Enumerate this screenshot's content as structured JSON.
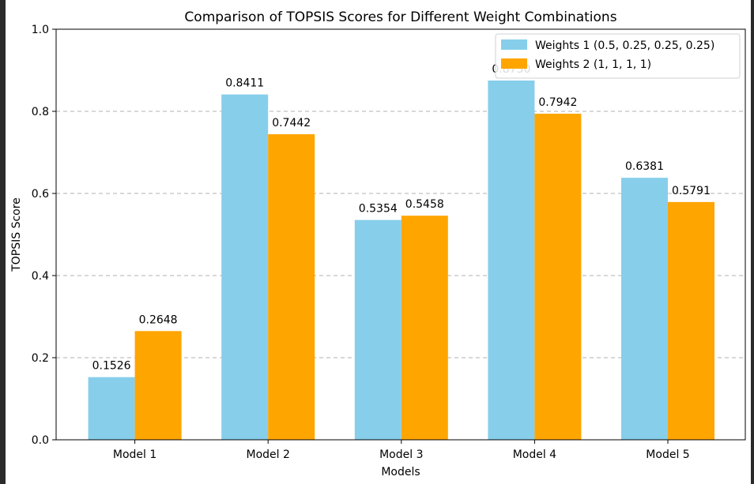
{
  "chart_data": {
    "type": "bar",
    "title": "Comparison of TOPSIS Scores for Different Weight Combinations",
    "xlabel": "Models",
    "ylabel": "TOPSIS Score",
    "categories": [
      "Model 1",
      "Model 2",
      "Model 3",
      "Model 4",
      "Model 5"
    ],
    "series": [
      {
        "name": "Weights 1 (0.5, 0.25, 0.25, 0.25)",
        "color": "#87ceeb",
        "values": [
          0.1526,
          0.8411,
          0.5354,
          0.875,
          0.6381
        ]
      },
      {
        "name": "Weights 2 (1, 1, 1, 1)",
        "color": "#ffa500",
        "values": [
          0.2648,
          0.7442,
          0.5458,
          0.7942,
          0.5791
        ]
      }
    ],
    "ylim": [
      0,
      1.0
    ],
    "yticks": [
      "0.0",
      "0.2",
      "0.4",
      "0.6",
      "0.8",
      "1.0"
    ],
    "grid": "y-dashed",
    "legend_position": "top-right"
  }
}
